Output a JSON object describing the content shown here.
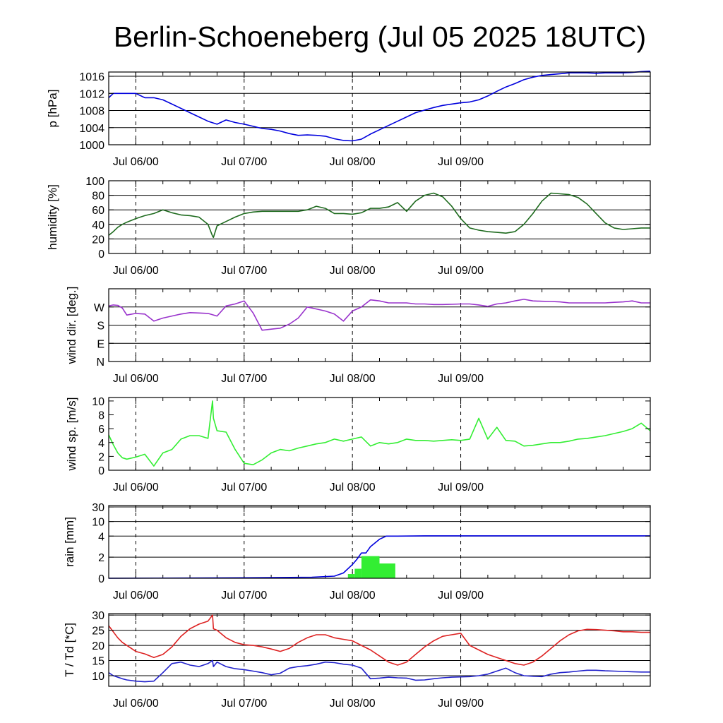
{
  "title": "Berlin-Schoeneberg (Jul 05 2025 18UTC)",
  "chart_data": [
    {
      "type": "line",
      "panel": "pressure",
      "ylabel": "p [hPa]",
      "ylim": [
        1000,
        1017
      ],
      "yticks": [
        1000,
        1004,
        1008,
        1012,
        1016
      ],
      "grid": true,
      "x_day_ticks": [
        "Jul 06/00",
        "Jul 07/00",
        "Jul 08/00",
        "Jul 09/00"
      ],
      "series": [
        {
          "color": "#0000dd",
          "x": [
            0,
            1,
            2,
            3,
            4,
            6,
            8,
            10,
            12,
            14,
            16,
            18,
            20,
            22,
            24,
            26,
            28,
            30,
            32,
            34,
            36,
            38,
            40,
            42,
            44,
            46,
            48,
            50,
            52,
            54,
            56,
            58,
            60,
            62,
            64,
            66,
            68,
            70,
            72,
            74,
            76,
            78,
            80,
            82,
            84,
            86,
            88,
            90,
            92,
            94,
            96,
            98,
            100,
            102,
            104,
            106,
            108,
            110,
            112,
            114,
            116,
            118,
            120
          ],
          "y": [
            1011,
            1012,
            1012,
            1012,
            1012,
            1012,
            1011,
            1011,
            1010.5,
            1009.5,
            1008.5,
            1007.5,
            1006.5,
            1005.5,
            1004.8,
            1005.8,
            1005.2,
            1004.8,
            1004.3,
            1003.8,
            1003.6,
            1003.2,
            1002.6,
            1002.2,
            1002.3,
            1002.2,
            1002,
            1001.4,
            1001,
            1000.9,
            1001.3,
            1002.5,
            1003.5,
            1004.5,
            1005.5,
            1006.5,
            1007.5,
            1008.1,
            1008.7,
            1009.2,
            1009.5,
            1009.8,
            1010,
            1010.5,
            1011.4,
            1012.5,
            1013.5,
            1014.3,
            1015.2,
            1015.8,
            1016.2,
            1016.4,
            1016.6,
            1016.8,
            1016.8,
            1016.8,
            1016.7,
            1016.8,
            1016.8,
            1016.8,
            1016.9,
            1017.1,
            1017.2
          ]
        }
      ]
    },
    {
      "type": "line",
      "panel": "humidity",
      "ylabel": "humidity [%]",
      "ylim": [
        0,
        100
      ],
      "yticks": [
        0,
        20,
        40,
        60,
        80,
        100
      ],
      "grid": true,
      "x_day_ticks": [
        "Jul 06/00",
        "Jul 07/00",
        "Jul 08/00",
        "Jul 09/00"
      ],
      "series": [
        {
          "color": "#1f6b1f",
          "x": [
            0,
            1,
            2,
            3,
            4,
            6,
            8,
            10,
            12,
            14,
            16,
            18,
            20,
            22,
            23,
            23.2,
            24,
            26,
            28,
            30,
            32,
            34,
            36,
            38,
            40,
            42,
            44,
            46,
            48,
            50,
            52,
            54,
            56,
            58,
            60,
            62,
            64,
            66,
            68,
            70,
            72,
            74,
            76,
            78,
            80,
            82,
            84,
            86,
            88,
            90,
            92,
            94,
            96,
            98,
            100,
            102,
            104,
            106,
            108,
            110,
            112,
            114,
            116,
            118,
            120
          ],
          "y": [
            25,
            30,
            36,
            40,
            43,
            48,
            52,
            55,
            60,
            56,
            53,
            52,
            50,
            40,
            24,
            22,
            38,
            44,
            50,
            55,
            57,
            58,
            58,
            58,
            58,
            58,
            60,
            65,
            62,
            55,
            55,
            54,
            56,
            62,
            62,
            64,
            70,
            58,
            72,
            80,
            83,
            78,
            65,
            48,
            35,
            32,
            30,
            29,
            28,
            30,
            40,
            55,
            72,
            83,
            82,
            81,
            77,
            68,
            55,
            42,
            35,
            33,
            34,
            35,
            35
          ]
        }
      ]
    },
    {
      "type": "line",
      "panel": "wind_direction",
      "ylabel": "wind dir. [deg.]",
      "ylim": [
        0,
        360
      ],
      "yticks": [
        0,
        90,
        180,
        270
      ],
      "ytick_labels": [
        "N",
        "E",
        "S",
        "W"
      ],
      "grid": true,
      "x_day_ticks": [
        "Jul 06/00",
        "Jul 07/00",
        "Jul 08/00",
        "Jul 09/00"
      ],
      "series": [
        {
          "color": "#9933cc",
          "x": [
            0,
            1,
            2,
            3,
            4,
            6,
            8,
            10,
            12,
            14,
            16,
            18,
            20,
            22,
            24,
            26,
            28,
            30,
            32,
            34,
            36,
            38,
            40,
            42,
            44,
            46,
            48,
            50,
            52,
            54,
            56,
            58,
            60,
            62,
            64,
            66,
            68,
            70,
            72,
            74,
            76,
            78,
            80,
            82,
            84,
            86,
            88,
            90,
            92,
            94,
            96,
            98,
            100,
            102,
            104,
            106,
            108,
            110,
            112,
            114,
            116,
            118,
            120
          ],
          "y": [
            275,
            280,
            278,
            265,
            230,
            238,
            235,
            200,
            215,
            225,
            235,
            242,
            240,
            238,
            225,
            275,
            285,
            300,
            240,
            155,
            160,
            165,
            185,
            215,
            270,
            260,
            250,
            235,
            200,
            250,
            270,
            305,
            300,
            290,
            290,
            290,
            285,
            285,
            282,
            282,
            283,
            285,
            285,
            280,
            273,
            285,
            290,
            300,
            308,
            300,
            298,
            297,
            295,
            290,
            290,
            290,
            290,
            290,
            293,
            295,
            300,
            290,
            290
          ]
        }
      ]
    },
    {
      "type": "line",
      "panel": "wind_speed",
      "ylabel": "wind sp. [m/s]",
      "ylim": [
        0,
        10.5
      ],
      "yticks": [
        0,
        2,
        4,
        6,
        8,
        10
      ],
      "grid": false,
      "x_day_ticks": [
        "Jul 06/00",
        "Jul 07/00",
        "Jul 08/00",
        "Jul 09/00"
      ],
      "series": [
        {
          "color": "#33ee33",
          "x": [
            0,
            1,
            2,
            3,
            4,
            6,
            8,
            10,
            12,
            14,
            16,
            18,
            20,
            22,
            23,
            23.2,
            24,
            26,
            28,
            30,
            32,
            34,
            36,
            38,
            40,
            42,
            44,
            46,
            48,
            50,
            52,
            54,
            56,
            58,
            60,
            62,
            64,
            66,
            68,
            70,
            72,
            74,
            76,
            78,
            80,
            82,
            84,
            86,
            88,
            90,
            92,
            94,
            96,
            98,
            100,
            102,
            104,
            106,
            108,
            110,
            112,
            114,
            116,
            118,
            120
          ],
          "y": [
            5.1,
            3.7,
            2.5,
            1.8,
            1.6,
            1.9,
            2.3,
            0.6,
            2.5,
            3,
            4.5,
            5,
            5,
            4.6,
            10,
            7.5,
            5.7,
            5.5,
            3,
            1,
            0.8,
            1.5,
            2.5,
            3,
            2.8,
            3.2,
            3.5,
            3.8,
            4,
            4.5,
            4.2,
            4.5,
            4.8,
            3.5,
            4,
            3.8,
            4,
            4.5,
            4.3,
            4.3,
            4.2,
            4.3,
            4.4,
            4.3,
            4.5,
            7.5,
            4.5,
            6.2,
            4.3,
            4.2,
            3.5,
            3.6,
            3.8,
            4,
            4,
            4.2,
            4.5,
            4.6,
            4.8,
            5,
            5.3,
            5.6,
            6,
            6.8,
            5.7
          ]
        }
      ]
    },
    {
      "type": "line",
      "panel": "rain",
      "ylabel": "rain [mm]",
      "yticks": [
        0,
        2,
        4,
        10,
        30
      ],
      "grid": true,
      "x_day_ticks": [
        "Jul 06/00",
        "Jul 07/00",
        "Jul 08/00",
        "Jul 09/00"
      ],
      "series": [
        {
          "color": "#0000dd",
          "x": [
            0,
            30,
            45,
            50,
            52,
            54,
            55,
            56,
            57,
            58,
            60,
            61.5,
            62,
            64,
            70,
            120
          ],
          "y": [
            0,
            0.05,
            0.1,
            0.2,
            0.5,
            1.3,
            1.8,
            2.4,
            2.4,
            3,
            3.7,
            4,
            4,
            4,
            4.1,
            4.1
          ]
        }
      ],
      "bars": {
        "color": "#33ee33",
        "x_start": [
          53,
          54.5,
          56,
          60
        ],
        "x_end": [
          54.5,
          56,
          60,
          63.5
        ],
        "values": [
          0.4,
          0.9,
          2.1,
          1.4
        ]
      }
    },
    {
      "type": "line",
      "panel": "temperature",
      "ylabel": "T / Td [*C]",
      "ylim": [
        6.5,
        30.5
      ],
      "yticks": [
        10,
        15,
        20,
        25,
        30
      ],
      "grid": true,
      "x_day_ticks": [
        "Jul 06/00",
        "Jul 07/00",
        "Jul 08/00",
        "Jul 09/00"
      ],
      "series": [
        {
          "color": "#dd2222",
          "x": [
            0,
            1,
            2,
            3,
            4,
            6,
            8,
            10,
            12,
            14,
            16,
            18,
            20,
            22,
            23,
            23.2,
            24,
            26,
            28,
            30,
            32,
            34,
            36,
            38,
            40,
            42,
            44,
            46,
            48,
            50,
            52,
            54,
            56,
            58,
            60,
            62,
            64,
            66,
            68,
            70,
            72,
            74,
            76,
            78,
            80,
            82,
            84,
            86,
            88,
            90,
            92,
            94,
            96,
            98,
            100,
            102,
            104,
            106,
            108,
            110,
            112,
            114,
            116,
            118,
            120
          ],
          "y": [
            26.5,
            24.5,
            22.5,
            21,
            20,
            18,
            17.2,
            16,
            17,
            19.5,
            23,
            25.5,
            27,
            28,
            30,
            25.5,
            25,
            22.5,
            21,
            20.2,
            20,
            19.5,
            18.8,
            18,
            19,
            21,
            22.5,
            23.5,
            23.5,
            22.5,
            22,
            21.5,
            20,
            18.5,
            16.5,
            14.5,
            13.5,
            14.5,
            17,
            19.5,
            21.5,
            23,
            23.5,
            24,
            20,
            18.5,
            17,
            16,
            15,
            14,
            13.5,
            14.5,
            16.5,
            19,
            21.5,
            23.5,
            24.8,
            25.3,
            25.2,
            25,
            24.8,
            24.5,
            24.5,
            24.3,
            24.3
          ]
        },
        {
          "color": "#2222cc",
          "x": [
            0,
            1,
            2,
            3,
            4,
            6,
            8,
            10,
            12,
            14,
            16,
            18,
            20,
            22,
            23,
            23.2,
            24,
            26,
            28,
            30,
            32,
            34,
            36,
            38,
            40,
            42,
            44,
            46,
            48,
            50,
            52,
            54,
            56,
            58,
            60,
            62,
            64,
            66,
            68,
            70,
            72,
            74,
            76,
            78,
            80,
            82,
            84,
            86,
            88,
            90,
            92,
            94,
            96,
            98,
            100,
            102,
            104,
            106,
            108,
            110,
            112,
            114,
            116,
            118,
            120
          ],
          "y": [
            11,
            10,
            9.5,
            9,
            8.6,
            8.2,
            8,
            8.2,
            11,
            14,
            14.5,
            13.5,
            13,
            14,
            15,
            13,
            14.5,
            13,
            12.3,
            12,
            11.5,
            11,
            10.3,
            10.8,
            12.5,
            13,
            13.3,
            13.8,
            14.5,
            14.3,
            13.8,
            13.5,
            12.5,
            9,
            9.2,
            9.5,
            9.3,
            9.2,
            8.5,
            8.6,
            9,
            9.3,
            9.5,
            9.6,
            9.7,
            10,
            10.5,
            11.5,
            12.5,
            11,
            10,
            9.8,
            9.7,
            10.5,
            11,
            11.2,
            11.5,
            11.8,
            11.8,
            11.6,
            11.5,
            11.4,
            11.3,
            11.2,
            11.2
          ]
        }
      ]
    }
  ]
}
